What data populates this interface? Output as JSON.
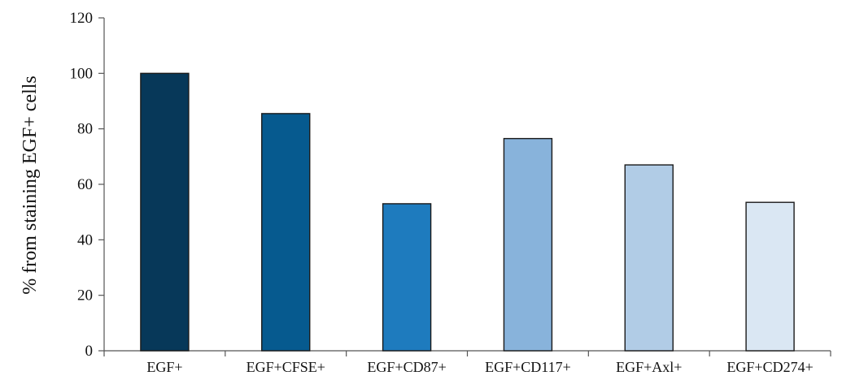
{
  "chart_data": {
    "type": "bar",
    "categories": [
      "EGF+",
      "EGF+CFSE+",
      "EGF+CD87+",
      "EGF+CD117+",
      "EGF+Axl+",
      "EGF+CD274+"
    ],
    "values": [
      100,
      85.5,
      53,
      76.5,
      67,
      53.5
    ],
    "bar_colors": [
      "#073859",
      "#065a8f",
      "#1e7bbe",
      "#88b3db",
      "#b1cce6",
      "#dae7f3"
    ],
    "ylabel": "% from staining EGF+ cells",
    "xlabel": "",
    "title": "",
    "ylim": [
      0,
      120
    ],
    "yticks": [
      0,
      20,
      40,
      60,
      80,
      100,
      120
    ],
    "grid": false,
    "legend": "none"
  }
}
